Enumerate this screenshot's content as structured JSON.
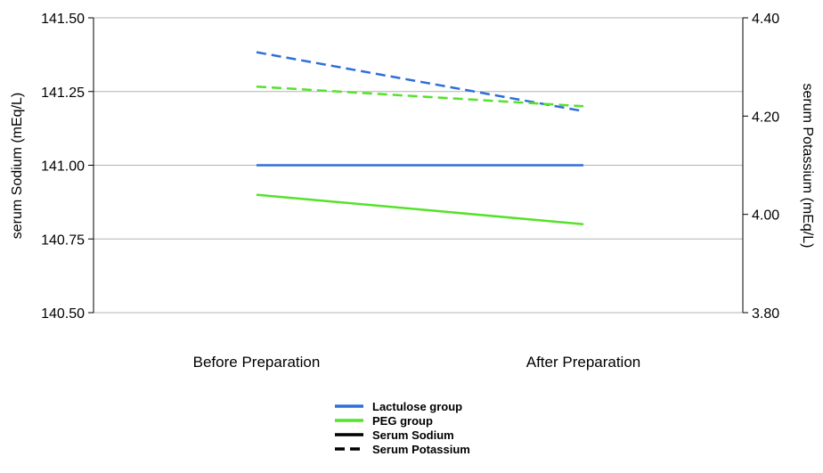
{
  "chart_data": {
    "type": "line",
    "categories": [
      "Before Preparation",
      "After Preparation"
    ],
    "ylabel_left": "serum Sodium (mEq/L)",
    "ylabel_right": "serum Potassium (mEq/L)",
    "ylim_left": [
      140.5,
      141.5
    ],
    "yticks_left": [
      "141.50",
      "141.25",
      "141.00",
      "140.75",
      "140.50"
    ],
    "ylim_right": [
      3.8,
      4.4
    ],
    "yticks_right": [
      "4.40",
      "4.20",
      "4.00",
      "3.80"
    ],
    "grid": true,
    "legend_position": "bottom-center",
    "legend": [
      {
        "label": "Lactulose group",
        "color": "#2e6fd8",
        "style": "solid"
      },
      {
        "label": "PEG group",
        "color": "#55e22a",
        "style": "solid"
      },
      {
        "label": "Serum Sodium",
        "color": "#000000",
        "style": "solid"
      },
      {
        "label": "Serum Potassium",
        "color": "#000000",
        "style": "dashed"
      }
    ],
    "series": [
      {
        "group": "Lactulose group",
        "measure": "Serum Sodium",
        "axis": "left",
        "color": "#2e6fd8",
        "dashed": false,
        "values": [
          141.0,
          141.0
        ]
      },
      {
        "group": "PEG group",
        "measure": "Serum Sodium",
        "axis": "left",
        "color": "#55e22a",
        "dashed": false,
        "values": [
          140.9,
          140.8
        ]
      },
      {
        "group": "Lactulose group",
        "measure": "Serum Potassium",
        "axis": "right",
        "color": "#2e6fd8",
        "dashed": true,
        "values": [
          4.33,
          4.21
        ]
      },
      {
        "group": "PEG group",
        "measure": "Serum Potassium",
        "axis": "right",
        "color": "#55e22a",
        "dashed": true,
        "values": [
          4.26,
          4.22
        ]
      }
    ]
  }
}
